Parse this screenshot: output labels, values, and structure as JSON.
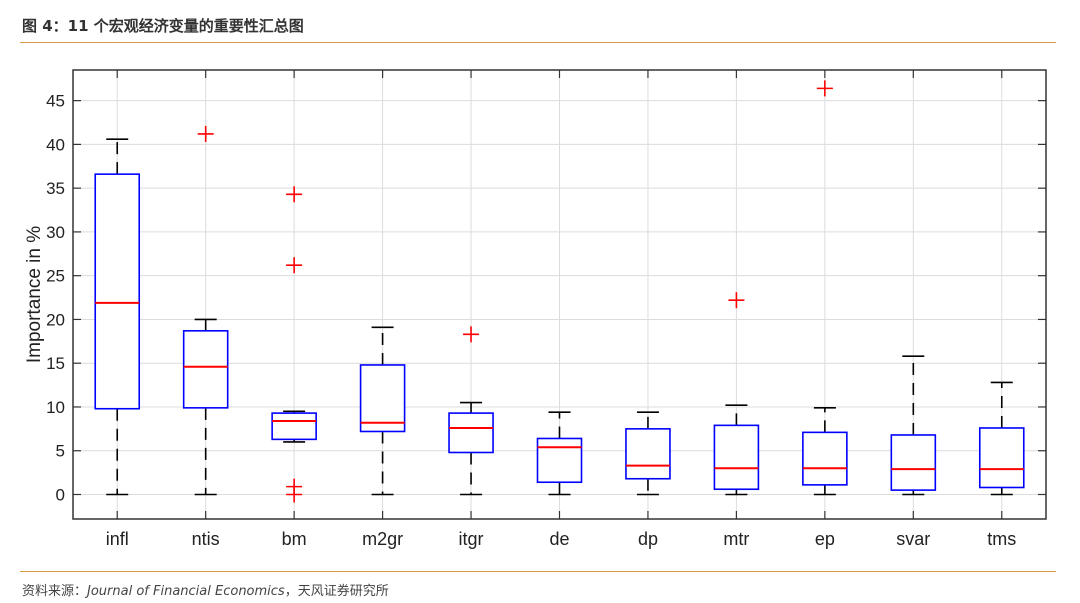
{
  "header": {
    "figure_title": "图 4：11 个宏观经济变量的重要性汇总图"
  },
  "footer": {
    "source_prefix": "资料来源：",
    "source_journal": "Journal of Financial Economics",
    "source_suffix": "，天风证券研究所"
  },
  "chart_data": {
    "type": "boxplot",
    "title": "",
    "xlabel": "",
    "ylabel": "Importance in %",
    "ylim": [
      -2.8,
      48.5
    ],
    "yticks": [
      0,
      5,
      10,
      15,
      20,
      25,
      30,
      35,
      40,
      45
    ],
    "grid": true,
    "box_color": "#0000ff",
    "median_color": "#ff0000",
    "outlier_color": "#ff0000",
    "whisker_color": "#000000",
    "categories": [
      "infl",
      "ntis",
      "bm",
      "m2gr",
      "itgr",
      "de",
      "dp",
      "mtr",
      "ep",
      "svar",
      "tms"
    ],
    "boxes": [
      {
        "name": "infl",
        "whisker_low": 0,
        "q1": 9.8,
        "median": 21.9,
        "q3": 36.6,
        "whisker_high": 40.6,
        "outliers": []
      },
      {
        "name": "ntis",
        "whisker_low": 0,
        "q1": 9.9,
        "median": 14.6,
        "q3": 18.7,
        "whisker_high": 20.0,
        "outliers": [
          41.2
        ]
      },
      {
        "name": "bm",
        "whisker_low": 6.0,
        "q1": 6.3,
        "median": 8.4,
        "q3": 9.3,
        "whisker_high": 9.5,
        "outliers": [
          34.3,
          26.2,
          0.9,
          0
        ]
      },
      {
        "name": "m2gr",
        "whisker_low": 0,
        "q1": 7.2,
        "median": 8.2,
        "q3": 14.8,
        "whisker_high": 19.1,
        "outliers": []
      },
      {
        "name": "itgr",
        "whisker_low": 0,
        "q1": 4.8,
        "median": 7.6,
        "q3": 9.3,
        "whisker_high": 10.5,
        "outliers": [
          18.3
        ]
      },
      {
        "name": "de",
        "whisker_low": 0,
        "q1": 1.4,
        "median": 5.4,
        "q3": 6.4,
        "whisker_high": 9.4,
        "outliers": []
      },
      {
        "name": "dp",
        "whisker_low": 0,
        "q1": 1.8,
        "median": 3.3,
        "q3": 7.5,
        "whisker_high": 9.4,
        "outliers": []
      },
      {
        "name": "mtr",
        "whisker_low": 0,
        "q1": 0.6,
        "median": 3.0,
        "q3": 7.9,
        "whisker_high": 10.2,
        "outliers": [
          22.2
        ]
      },
      {
        "name": "ep",
        "whisker_low": 0,
        "q1": 1.1,
        "median": 3.0,
        "q3": 7.1,
        "whisker_high": 9.9,
        "outliers": [
          46.4
        ]
      },
      {
        "name": "svar",
        "whisker_low": 0,
        "q1": 0.5,
        "median": 2.9,
        "q3": 6.8,
        "whisker_high": 15.8,
        "outliers": []
      },
      {
        "name": "tms",
        "whisker_low": 0,
        "q1": 0.8,
        "median": 2.9,
        "q3": 7.6,
        "whisker_high": 12.8,
        "outliers": []
      }
    ]
  }
}
